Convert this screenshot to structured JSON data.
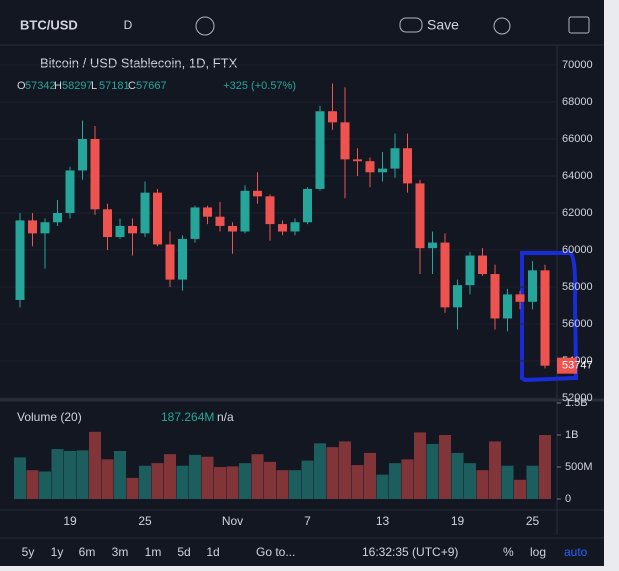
{
  "toolbar": {
    "symbol": "BTC/USD",
    "interval": "D",
    "save": "Save"
  },
  "legend": {
    "title": "Bitcoin / USD Stablecoin, 1D, FTX",
    "ohlc": [
      {
        "label": "O",
        "value": "57342"
      },
      {
        "label": "H",
        "value": "58297"
      },
      {
        "label": "L",
        "value": "57181"
      },
      {
        "label": "C",
        "value": "57667"
      }
    ],
    "change": "+325 (+0.57%)"
  },
  "volume_legend": {
    "title": "Volume (20)",
    "value": "187.264M",
    "extra": "n/a"
  },
  "bottom_bar": {
    "ranges": [
      "5y",
      "1y",
      "6m",
      "3m",
      "1m",
      "5d",
      "1d"
    ],
    "goto": "Go to...",
    "time": "16:32:35 (UTC+9)",
    "percent": "%",
    "log": "log",
    "auto": "auto"
  },
  "chart_data": {
    "type": "candlestick",
    "up_color": "#26a69a",
    "down_color": "#ef5350",
    "categories": [
      null,
      null,
      null,
      null,
      "19",
      null,
      null,
      null,
      null,
      null,
      "25",
      null,
      null,
      null,
      null,
      null,
      null,
      "Nov",
      null,
      null,
      null,
      null,
      null,
      "7",
      null,
      null,
      null,
      null,
      null,
      "13",
      null,
      null,
      null,
      null,
      null,
      "19",
      null,
      null,
      null,
      null,
      null,
      "25",
      null
    ],
    "open": [
      57300,
      61600,
      60900,
      61500,
      62000,
      64300,
      66000,
      62200,
      60700,
      61300,
      60900,
      63100,
      60300,
      58400,
      60600,
      62300,
      61800,
      61300,
      61000,
      63200,
      62900,
      61400,
      61000,
      61500,
      63300,
      67500,
      66900,
      64900,
      64800,
      64200,
      64400,
      65500,
      63600,
      60100,
      60400,
      56900,
      58100,
      59700,
      58700,
      56300,
      57600,
      57200,
      58900
    ],
    "high": [
      62000,
      62000,
      61700,
      62700,
      64500,
      67000,
      66700,
      62500,
      61700,
      61700,
      63700,
      63300,
      61000,
      60800,
      62400,
      62400,
      62600,
      61500,
      63500,
      64200,
      63000,
      61600,
      61700,
      63400,
      67800,
      69000,
      68800,
      65500,
      65000,
      65300,
      66300,
      66300,
      63800,
      61000,
      60900,
      58400,
      59900,
      60100,
      59200,
      57900,
      57800,
      59400,
      59200
    ],
    "low": [
      56900,
      60200,
      59000,
      61300,
      61700,
      63800,
      61900,
      60000,
      60600,
      59700,
      60700,
      60200,
      58000,
      57800,
      60400,
      61400,
      61000,
      59800,
      60900,
      62500,
      60500,
      60800,
      60800,
      61400,
      63200,
      66500,
      62800,
      64000,
      63400,
      63700,
      63900,
      63100,
      58700,
      58700,
      56600,
      55700,
      57600,
      58600,
      55700,
      55600,
      56800,
      56800,
      53600
    ],
    "close": [
      61600,
      60900,
      61500,
      62000,
      64300,
      66000,
      62200,
      60700,
      61300,
      60900,
      63100,
      60300,
      58400,
      60600,
      62300,
      61800,
      61300,
      61000,
      63200,
      62900,
      61400,
      61000,
      61500,
      63300,
      67500,
      66900,
      64900,
      64800,
      64200,
      64400,
      65500,
      63600,
      60100,
      60400,
      56900,
      58100,
      59700,
      58700,
      56300,
      57600,
      57200,
      58900,
      53747
    ],
    "ylim": [
      52000,
      70000
    ],
    "yticks": [
      52000,
      54000,
      56000,
      58000,
      60000,
      62000,
      64000,
      66000,
      68000,
      70000
    ],
    "volume": [
      650000000,
      450000000,
      430000000,
      780000000,
      750000000,
      760000000,
      1050000000,
      620000000,
      750000000,
      330000000,
      520000000,
      560000000,
      700000000,
      520000000,
      690000000,
      660000000,
      500000000,
      510000000,
      560000000,
      700000000,
      580000000,
      450000000,
      450000000,
      600000000,
      870000000,
      810000000,
      900000000,
      530000000,
      720000000,
      380000000,
      560000000,
      620000000,
      1040000000,
      860000000,
      1000000000,
      720000000,
      560000000,
      450000000,
      900000000,
      520000000,
      300000000,
      520000000,
      1000000000
    ],
    "y2lim": [
      0,
      1500000000
    ],
    "y2ticks": [
      0,
      {
        "value": 500000000,
        "label": "500M"
      },
      {
        "value": 1000000000,
        "label": "1B"
      },
      {
        "value": 1500000000,
        "label": "1.5B"
      }
    ]
  }
}
